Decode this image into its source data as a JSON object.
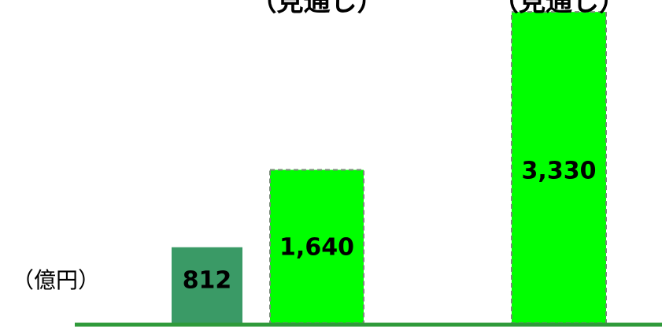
{
  "chart_data": {
    "type": "bar",
    "unit_label": "（億円）",
    "categories": [
      null,
      "（見通し）",
      "（見通し）"
    ],
    "values": [
      812,
      1640,
      3330
    ],
    "value_labels": [
      "812",
      "1,640",
      "3,330"
    ],
    "colors": [
      "#3a9a66",
      "#00ff00",
      "#00ff00"
    ],
    "ylim": [
      0,
      3500
    ]
  }
}
